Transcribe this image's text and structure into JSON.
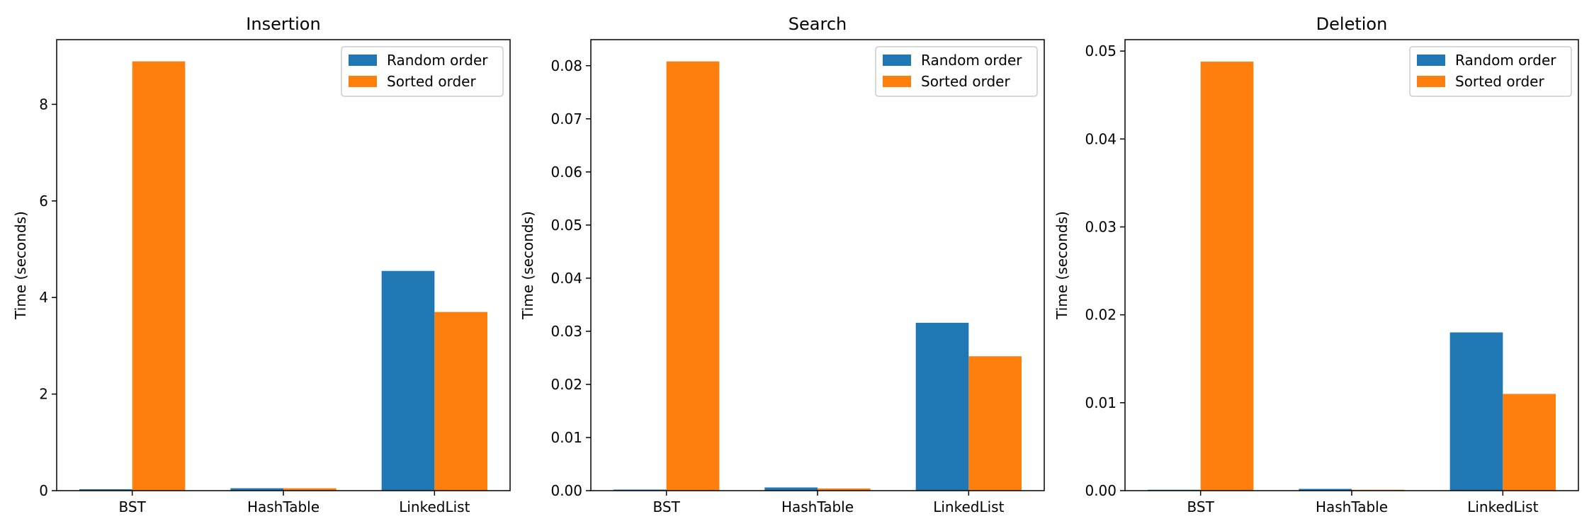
{
  "chart_data": [
    {
      "type": "bar",
      "title": "Insertion",
      "ylabel": "Time (seconds)",
      "categories": [
        "BST",
        "HashTable",
        "LinkedList"
      ],
      "ylim": [
        0,
        9.34
      ],
      "yticks": [
        0,
        2,
        4,
        6,
        8
      ],
      "ytick_labels": [
        "0",
        "2",
        "4",
        "6",
        "8"
      ],
      "series": [
        {
          "name": "Random order",
          "values": [
            0.03,
            0.05,
            4.55
          ]
        },
        {
          "name": "Sorted order",
          "values": [
            8.89,
            0.05,
            3.7
          ]
        }
      ],
      "legend": "top-right"
    },
    {
      "type": "bar",
      "title": "Search",
      "ylabel": "Time (seconds)",
      "categories": [
        "BST",
        "HashTable",
        "LinkedList"
      ],
      "ylim": [
        0,
        0.0849
      ],
      "yticks": [
        0,
        0.01,
        0.02,
        0.03,
        0.04,
        0.05,
        0.06,
        0.07,
        0.08
      ],
      "ytick_labels": [
        "0.00",
        "0.01",
        "0.02",
        "0.03",
        "0.04",
        "0.05",
        "0.06",
        "0.07",
        "0.08"
      ],
      "series": [
        {
          "name": "Random order",
          "values": [
            0.0002,
            0.0006,
            0.0316
          ]
        },
        {
          "name": "Sorted order",
          "values": [
            0.0808,
            0.0004,
            0.0253
          ]
        }
      ],
      "legend": "top-right"
    },
    {
      "type": "bar",
      "title": "Deletion",
      "ylabel": "Time (seconds)",
      "categories": [
        "BST",
        "HashTable",
        "LinkedList"
      ],
      "ylim": [
        0,
        0.0513
      ],
      "yticks": [
        0,
        0.01,
        0.02,
        0.03,
        0.04,
        0.05
      ],
      "ytick_labels": [
        "0.00",
        "0.01",
        "0.02",
        "0.03",
        "0.04",
        "0.05"
      ],
      "series": [
        {
          "name": "Random order",
          "values": [
            0.0001,
            0.0002,
            0.018
          ]
        },
        {
          "name": "Sorted order",
          "values": [
            0.0488,
            0.0001,
            0.011
          ]
        }
      ],
      "legend": "top-right"
    }
  ],
  "colors": {
    "Random order": "#1f77b4",
    "Sorted order": "#ff7f0e"
  }
}
